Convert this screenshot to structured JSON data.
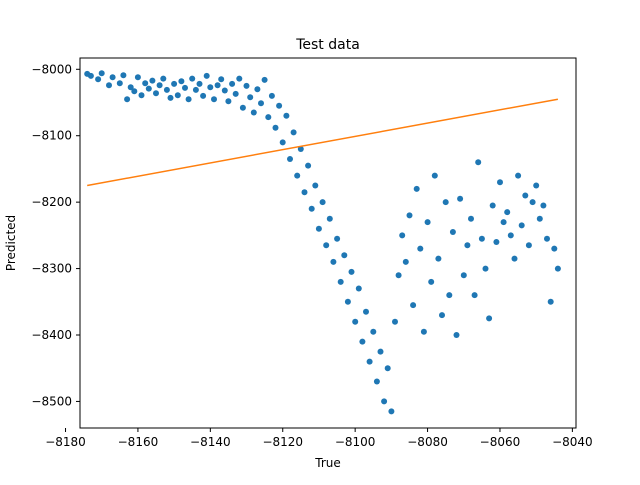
{
  "chart_data": {
    "type": "scatter",
    "title": "Test data",
    "xlabel": "True",
    "ylabel": "Predicted",
    "xlim": [
      -8176,
      -8039
    ],
    "ylim": [
      -8540,
      -7983
    ],
    "xticks": [
      -8180,
      -8160,
      -8140,
      -8120,
      -8100,
      -8080,
      -8060,
      -8040
    ],
    "xtick_labels": [
      "−8180",
      "−8160",
      "−8140",
      "−8120",
      "−8100",
      "−8080",
      "−8060",
      "−8040"
    ],
    "yticks": [
      -8000,
      -8100,
      -8200,
      -8300,
      -8400,
      -8500
    ],
    "ytick_labels": [
      "−8000",
      "−8100",
      "−8200",
      "−8300",
      "−8400",
      "−8500"
    ],
    "grid": false,
    "colors": {
      "points": "#1f77b4",
      "line": "#ff7f0e",
      "axes": "#000000"
    },
    "series": [
      {
        "kind": "scatter",
        "points": [
          [
            -8174.0,
            -8007
          ],
          [
            -8173.0,
            -8010
          ],
          [
            -8171.0,
            -8015
          ],
          [
            -8170.0,
            -8006
          ],
          [
            -8168.0,
            -8024
          ],
          [
            -8167.0,
            -8012
          ],
          [
            -8165.0,
            -8021
          ],
          [
            -8164.0,
            -8009
          ],
          [
            -8163.0,
            -8045
          ],
          [
            -8162.0,
            -8027
          ],
          [
            -8161.0,
            -8033
          ],
          [
            -8160.0,
            -8012
          ],
          [
            -8159.0,
            -8039
          ],
          [
            -8158.0,
            -8021
          ],
          [
            -8157.0,
            -8029
          ],
          [
            -8156.0,
            -8017
          ],
          [
            -8155.0,
            -8036
          ],
          [
            -8154.0,
            -8024
          ],
          [
            -8153.0,
            -8014
          ],
          [
            -8152.0,
            -8031
          ],
          [
            -8151.0,
            -8043
          ],
          [
            -8150.0,
            -8022
          ],
          [
            -8149.0,
            -8039
          ],
          [
            -8148.0,
            -8018
          ],
          [
            -8147.0,
            -8028
          ],
          [
            -8146.0,
            -8045
          ],
          [
            -8145.0,
            -8014
          ],
          [
            -8144.0,
            -8031
          ],
          [
            -8143.0,
            -8022
          ],
          [
            -8142.0,
            -8040
          ],
          [
            -8141.0,
            -8010
          ],
          [
            -8140.0,
            -8027
          ],
          [
            -8139.0,
            -8045
          ],
          [
            -8138.0,
            -8024
          ],
          [
            -8137.0,
            -8015
          ],
          [
            -8136.0,
            -8032
          ],
          [
            -8135.0,
            -8048
          ],
          [
            -8134.0,
            -8022
          ],
          [
            -8133.0,
            -8037
          ],
          [
            -8132.0,
            -8014
          ],
          [
            -8131.0,
            -8058
          ],
          [
            -8130.0,
            -8025
          ],
          [
            -8129.0,
            -8042
          ],
          [
            -8128.0,
            -8065
          ],
          [
            -8127.0,
            -8030
          ],
          [
            -8126.0,
            -8051
          ],
          [
            -8125.0,
            -8016
          ],
          [
            -8124.0,
            -8072
          ],
          [
            -8123.0,
            -8040
          ],
          [
            -8122.0,
            -8088
          ],
          [
            -8121.0,
            -8055
          ],
          [
            -8120.0,
            -8110
          ],
          [
            -8119.0,
            -8070
          ],
          [
            -8118.0,
            -8135
          ],
          [
            -8117.0,
            -8095
          ],
          [
            -8116.0,
            -8160
          ],
          [
            -8115.0,
            -8120
          ],
          [
            -8114.0,
            -8185
          ],
          [
            -8113.0,
            -8145
          ],
          [
            -8112.0,
            -8210
          ],
          [
            -8111.0,
            -8175
          ],
          [
            -8110.0,
            -8240
          ],
          [
            -8109.0,
            -8200
          ],
          [
            -8108.0,
            -8265
          ],
          [
            -8107.0,
            -8225
          ],
          [
            -8106.0,
            -8290
          ],
          [
            -8105.0,
            -8255
          ],
          [
            -8104.0,
            -8320
          ],
          [
            -8103.0,
            -8280
          ],
          [
            -8102.0,
            -8350
          ],
          [
            -8101.0,
            -8305
          ],
          [
            -8100.0,
            -8380
          ],
          [
            -8099.0,
            -8330
          ],
          [
            -8098.0,
            -8410
          ],
          [
            -8097.0,
            -8365
          ],
          [
            -8096.0,
            -8440
          ],
          [
            -8095.0,
            -8395
          ],
          [
            -8094.0,
            -8470
          ],
          [
            -8093.0,
            -8425
          ],
          [
            -8092.0,
            -8500
          ],
          [
            -8091.0,
            -8450
          ],
          [
            -8090.0,
            -8515
          ],
          [
            -8089.0,
            -8380
          ],
          [
            -8088.0,
            -8310
          ],
          [
            -8087.0,
            -8250
          ],
          [
            -8086.0,
            -8290
          ],
          [
            -8085.0,
            -8220
          ],
          [
            -8084.0,
            -8355
          ],
          [
            -8083.0,
            -8180
          ],
          [
            -8082.0,
            -8270
          ],
          [
            -8081.0,
            -8395
          ],
          [
            -8080.0,
            -8230
          ],
          [
            -8079.0,
            -8320
          ],
          [
            -8078.0,
            -8160
          ],
          [
            -8077.0,
            -8285
          ],
          [
            -8076.0,
            -8370
          ],
          [
            -8075.0,
            -8200
          ],
          [
            -8074.0,
            -8340
          ],
          [
            -8073.0,
            -8245
          ],
          [
            -8072.0,
            -8400
          ],
          [
            -8071.0,
            -8195
          ],
          [
            -8070.0,
            -8310
          ],
          [
            -8069.0,
            -8265
          ],
          [
            -8068.0,
            -8225
          ],
          [
            -8067.0,
            -8340
          ],
          [
            -8066.0,
            -8140
          ],
          [
            -8065.0,
            -8255
          ],
          [
            -8064.0,
            -8300
          ],
          [
            -8063.0,
            -8375
          ],
          [
            -8062.0,
            -8205
          ],
          [
            -8061.0,
            -8260
          ],
          [
            -8060.0,
            -8170
          ],
          [
            -8059.0,
            -8230
          ],
          [
            -8058.0,
            -8215
          ],
          [
            -8057.0,
            -8250
          ],
          [
            -8056.0,
            -8285
          ],
          [
            -8055.0,
            -8160
          ],
          [
            -8054.0,
            -8235
          ],
          [
            -8053.0,
            -8190
          ],
          [
            -8052.0,
            -8265
          ],
          [
            -8051.0,
            -8200
          ],
          [
            -8050.0,
            -8175
          ],
          [
            -8049.0,
            -8225
          ],
          [
            -8048.0,
            -8205
          ],
          [
            -8047.0,
            -8255
          ],
          [
            -8046.0,
            -8350
          ],
          [
            -8045.0,
            -8270
          ],
          [
            -8044.0,
            -8300
          ]
        ]
      },
      {
        "kind": "line",
        "points": [
          [
            -8174.0,
            -8175
          ],
          [
            -8044.0,
            -8045
          ]
        ]
      }
    ]
  }
}
